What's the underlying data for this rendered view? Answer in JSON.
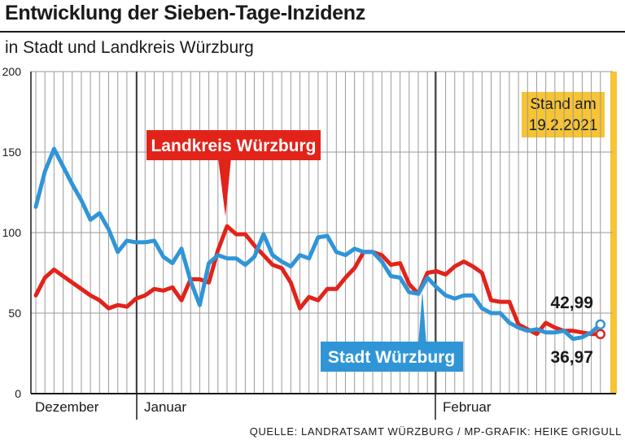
{
  "header": {
    "title": "Entwicklung der Sieben-Tage-Inzidenz",
    "subtitle": "in Stadt und Landkreis Würzburg"
  },
  "footer": {
    "source": "QUELLE: LANDRATSAMT WÜRZBURG / MP-GRAFIK: HEIKE GRIGULL"
  },
  "colors": {
    "landkreis": "#e2231a",
    "stadt": "#2f95d7",
    "stand": "#f7c433",
    "grid": "#9a9a9a",
    "text": "#1a1a1a"
  },
  "chart_data": {
    "type": "line",
    "title": "Entwicklung der Sieben-Tage-Inzidenz",
    "subtitle": "in Stadt und Landkreis Würzburg",
    "xlabel": "",
    "ylabel": "",
    "ylim": [
      0,
      200
    ],
    "yticks": [
      0,
      50,
      100,
      150,
      200
    ],
    "grid": true,
    "months": [
      "Dezember",
      "Januar",
      "Februar"
    ],
    "stand_label": [
      "Stand am",
      "19.2.2021"
    ],
    "series": [
      {
        "name": "Landkreis Würzburg",
        "color": "#e2231a",
        "final_label": "36,97",
        "values": [
          61,
          72,
          77,
          73,
          69,
          65,
          61,
          58,
          53,
          55,
          54,
          59,
          61,
          65,
          64,
          66,
          58,
          71,
          71,
          69,
          89,
          104,
          99,
          99,
          92,
          86,
          80,
          78,
          69,
          53,
          60,
          58,
          65,
          65,
          72,
          78,
          88,
          88,
          86,
          80,
          81,
          68,
          62,
          75,
          76,
          74,
          79,
          82,
          79,
          75,
          58,
          57,
          57,
          43,
          40,
          37,
          44,
          41,
          39,
          39,
          38,
          37,
          36.97
        ]
      },
      {
        "name": "Stadt Würzburg",
        "color": "#2f95d7",
        "final_label": "42,99",
        "values": [
          116,
          138,
          152,
          141,
          130,
          120,
          108,
          112,
          102,
          88,
          95,
          94,
          94,
          95,
          85,
          81,
          90,
          70,
          55,
          81,
          86,
          84,
          84,
          80,
          85,
          99,
          86,
          82,
          79,
          86,
          84,
          97,
          98,
          88,
          86,
          90,
          88,
          88,
          82,
          73,
          72,
          63,
          62,
          72,
          66,
          61,
          59,
          61,
          61,
          53,
          50,
          50,
          44,
          41,
          39,
          40,
          38,
          38,
          39,
          34,
          35,
          38,
          42.99
        ]
      }
    ]
  }
}
